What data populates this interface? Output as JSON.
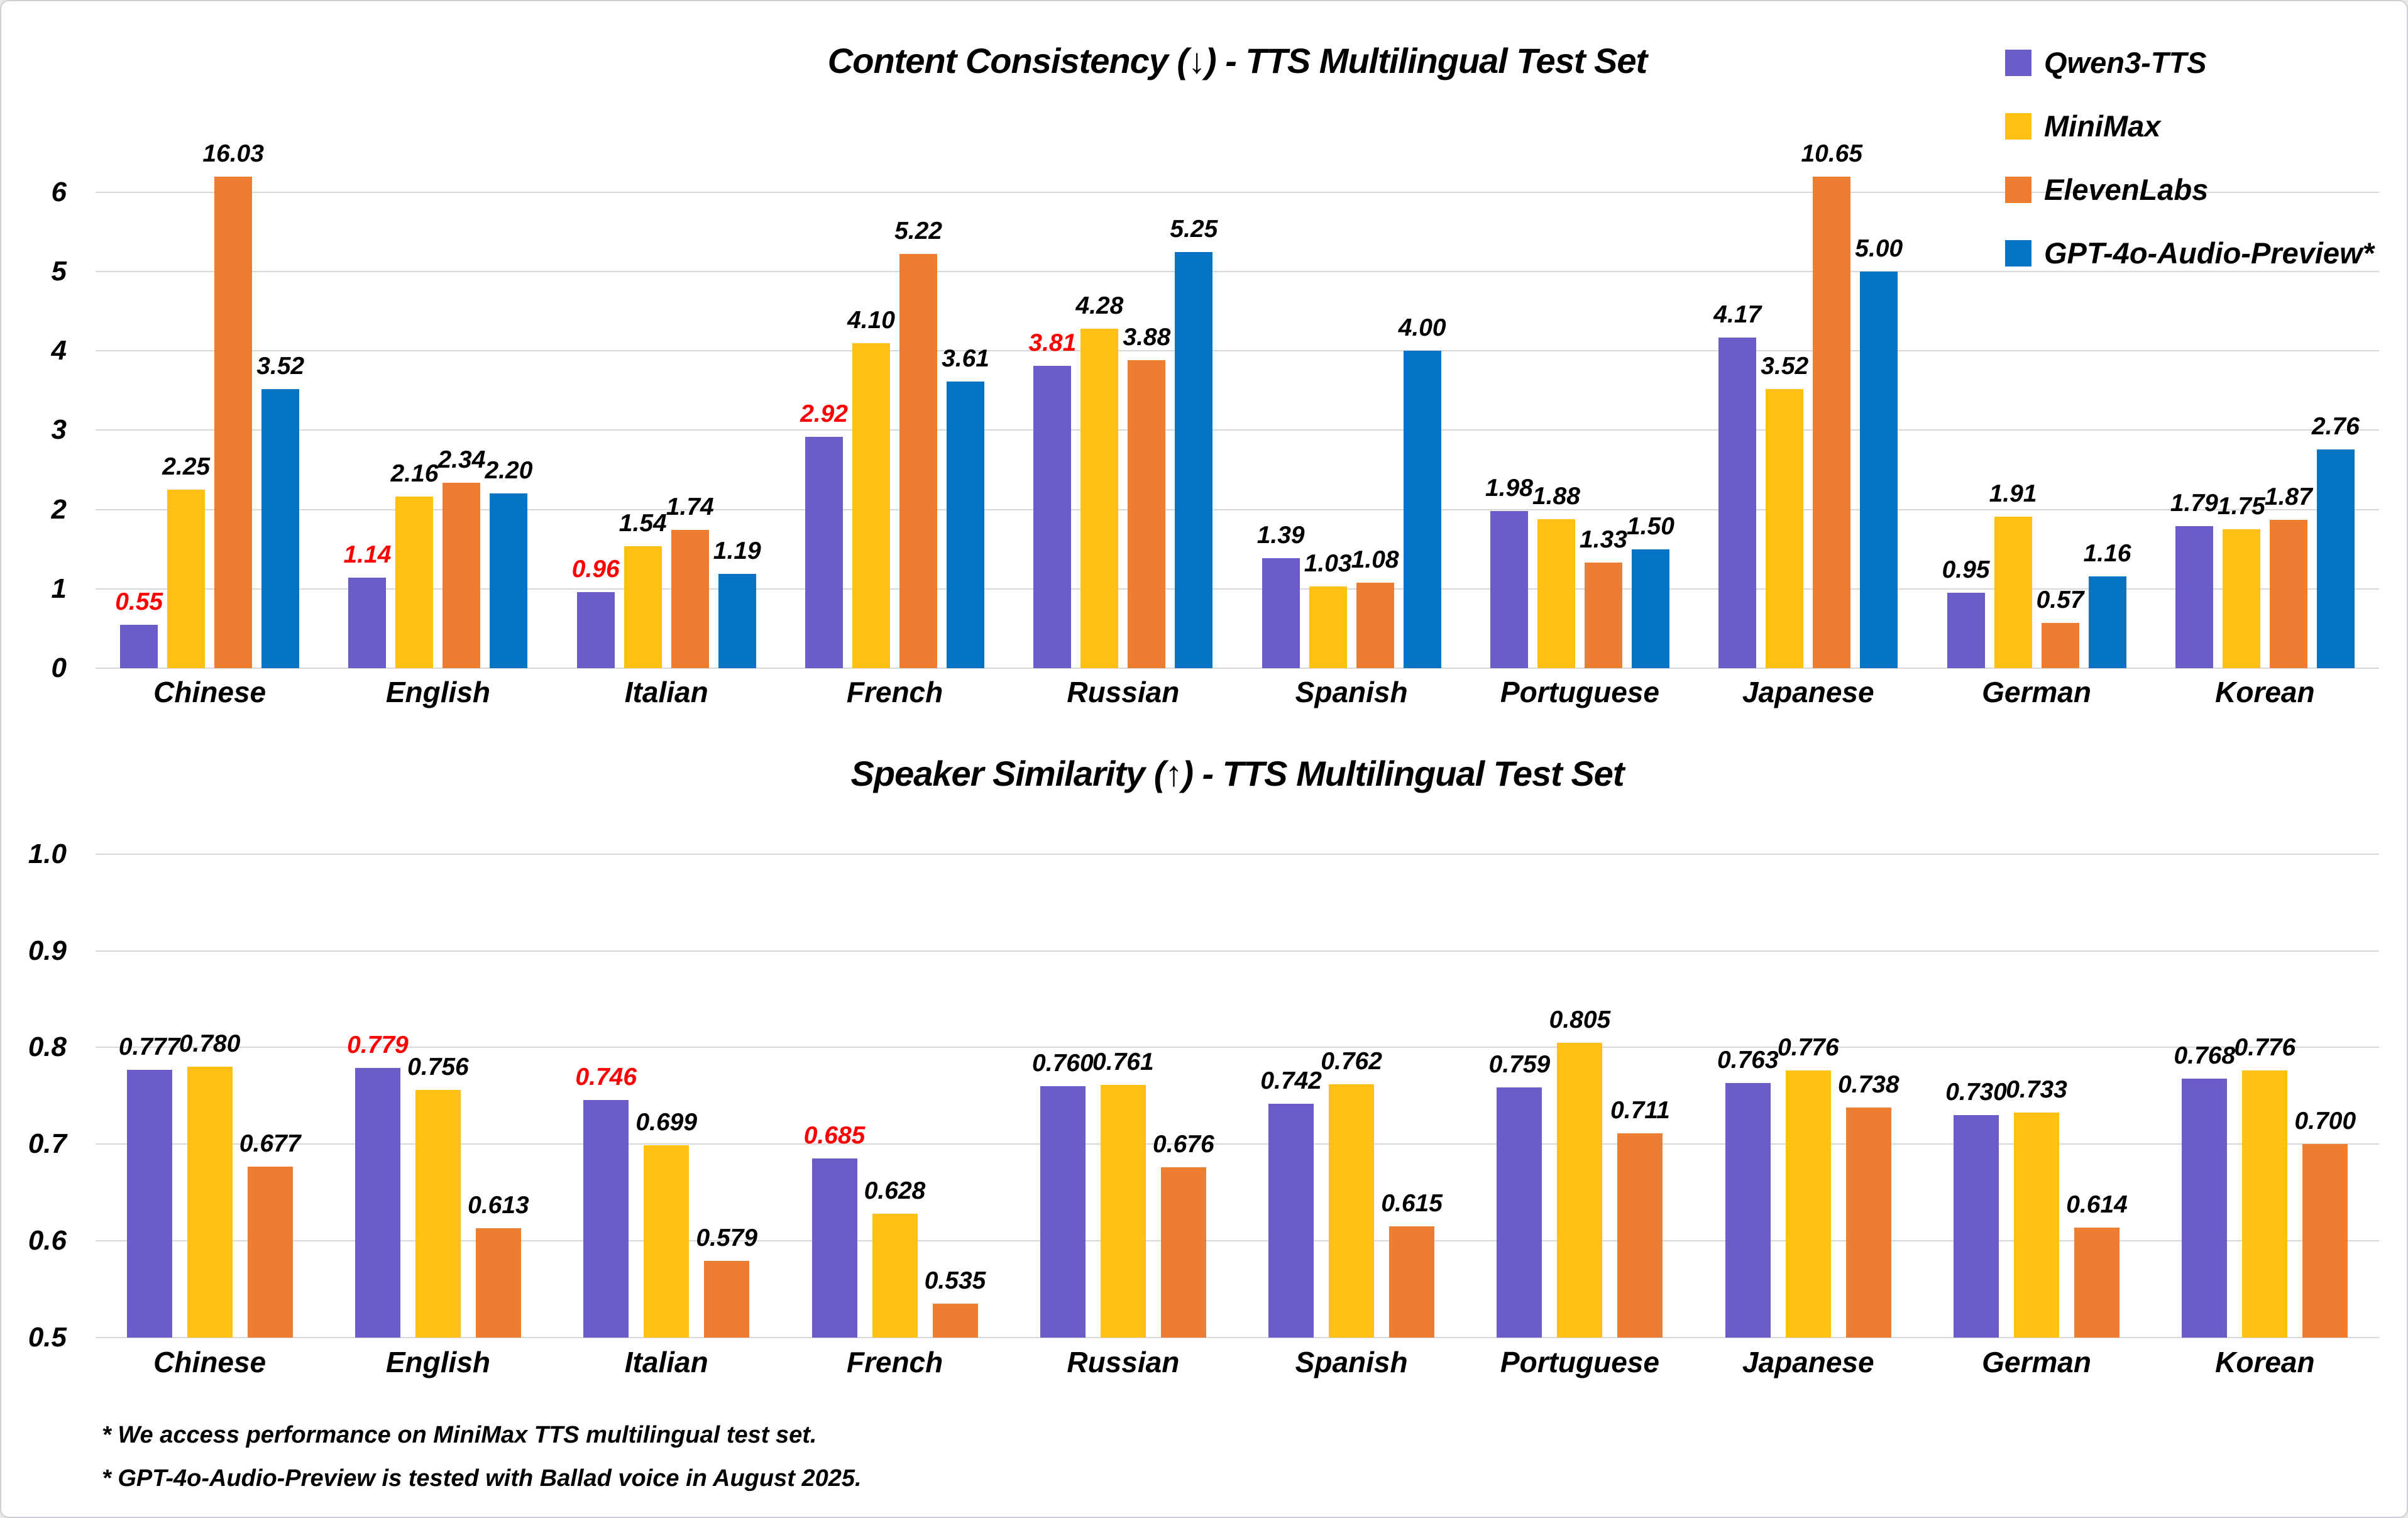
{
  "page": {
    "background": "#ffffff",
    "border_color": "#cdd1d6",
    "gridline_color": "#d8d8d8"
  },
  "styles": {
    "value_label_red": "#fe0000",
    "value_label_black": "#000000"
  },
  "legend": {
    "position": "top-right",
    "items": [
      {
        "label": "Qwen3-TTS",
        "color": "#6a5cc9"
      },
      {
        "label": "MiniMax",
        "color": "#ffc013"
      },
      {
        "label": "ElevenLabs",
        "color": "#ec7d31"
      },
      {
        "label": "GPT-4o-Audio-Preview*",
        "color": "#0473c4"
      }
    ]
  },
  "footnotes": [
    "* We access performance on MiniMax TTS multilingual test set.",
    "* GPT-4o-Audio-Preview is tested with Ballad voice in August 2025."
  ],
  "chart_data": [
    {
      "type": "bar",
      "title": "Content Consistency (↓) - TTS Multilingual Test Set",
      "xlabel": "",
      "ylabel": "",
      "grid": true,
      "legend_position": "top-right",
      "ylim": [
        0,
        6
      ],
      "ytick_step": 1,
      "tick_decimals": 0,
      "value_decimals": 2,
      "top_value": 6.3,
      "clip_value": 6.2,
      "categories": [
        "Chinese",
        "English",
        "Italian",
        "French",
        "Russian",
        "Spanish",
        "Portuguese",
        "Japanese",
        "German",
        "Korean"
      ],
      "series": [
        {
          "name": "Qwen3-TTS",
          "color": "#6a5cc9",
          "values": [
            0.55,
            1.14,
            0.96,
            2.92,
            3.81,
            1.39,
            1.98,
            4.17,
            0.95,
            1.79
          ],
          "emphasis": [
            "red",
            "red",
            "red",
            "red",
            "red",
            "normal",
            "normal",
            "normal",
            "normal",
            "normal"
          ]
        },
        {
          "name": "MiniMax",
          "color": "#ffc013",
          "values": [
            2.25,
            2.16,
            1.54,
            4.1,
            4.28,
            1.03,
            1.88,
            3.52,
            1.91,
            1.75
          ],
          "emphasis": [
            "normal",
            "normal",
            "normal",
            "normal",
            "normal",
            "bold",
            "normal",
            "bold",
            "normal",
            "bold"
          ]
        },
        {
          "name": "ElevenLabs",
          "color": "#ec7d31",
          "values": [
            16.03,
            2.34,
            1.74,
            5.22,
            3.88,
            1.08,
            1.33,
            10.65,
            0.57,
            1.87
          ],
          "emphasis": [
            "normal",
            "normal",
            "normal",
            "normal",
            "normal",
            "normal",
            "bold",
            "normal",
            "bold",
            "normal"
          ]
        },
        {
          "name": "GPT-4o-Audio-Preview*",
          "color": "#0473c4",
          "values": [
            3.52,
            2.2,
            1.19,
            3.61,
            5.25,
            4.0,
            1.5,
            5.0,
            1.16,
            2.76
          ],
          "emphasis": [
            "normal",
            "normal",
            "normal",
            "normal",
            "normal",
            "normal",
            "normal",
            "normal",
            "normal",
            "normal"
          ]
        }
      ]
    },
    {
      "type": "bar",
      "title": "Speaker Similarity (↑) - TTS Multilingual Test Set",
      "xlabel": "",
      "ylabel": "",
      "grid": true,
      "legend_position": "none",
      "ylim": [
        0.5,
        1.0
      ],
      "ytick_step": 0.1,
      "tick_decimals": 1,
      "value_decimals": 3,
      "top_value": 1.02,
      "categories": [
        "Chinese",
        "English",
        "Italian",
        "French",
        "Russian",
        "Spanish",
        "Portuguese",
        "Japanese",
        "German",
        "Korean"
      ],
      "series": [
        {
          "name": "Qwen3-TTS",
          "color": "#6a5cc9",
          "values": [
            0.777,
            0.779,
            0.746,
            0.685,
            0.76,
            0.742,
            0.759,
            0.763,
            0.73,
            0.768
          ],
          "emphasis": [
            "normal",
            "red",
            "red",
            "red",
            "normal",
            "normal",
            "normal",
            "normal",
            "normal",
            "normal"
          ]
        },
        {
          "name": "MiniMax",
          "color": "#ffc013",
          "values": [
            0.78,
            0.756,
            0.699,
            0.628,
            0.761,
            0.762,
            0.805,
            0.776,
            0.733,
            0.776
          ],
          "emphasis": [
            "bold",
            "normal",
            "normal",
            "normal",
            "bold",
            "bold",
            "bold",
            "bold",
            "bold",
            "bold"
          ]
        },
        {
          "name": "ElevenLabs",
          "color": "#ec7d31",
          "values": [
            0.677,
            0.613,
            0.579,
            0.535,
            0.676,
            0.615,
            0.711,
            0.738,
            0.614,
            0.7
          ],
          "emphasis": [
            "normal",
            "normal",
            "normal",
            "normal",
            "normal",
            "normal",
            "normal",
            "normal",
            "normal",
            "normal"
          ]
        }
      ]
    }
  ]
}
